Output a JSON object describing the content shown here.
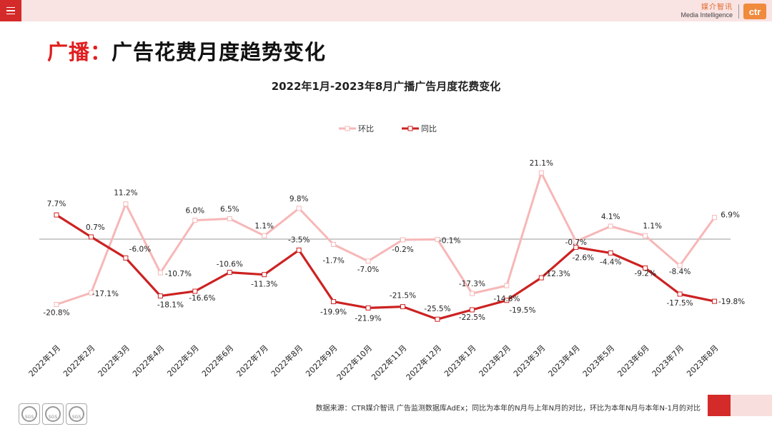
{
  "header": {
    "brand_cn": "媒介智讯",
    "brand_en": "Media Intelligence",
    "brand_logo": "ctr",
    "menu_icon": "menu-icon"
  },
  "page": {
    "title_accent": "广播：",
    "title_rest": "广告花费月度趋势变化"
  },
  "footer": {
    "note": "数据来源：CTR媒介智讯 广告监测数据库AdEx；同比为本年的N月与上年N月的对比，环比为本年N月与本年N-1月的对比",
    "seal_text": "SGS"
  },
  "colors": {
    "mom": "#f7b7b7",
    "yoy": "#cc2222",
    "accent": "#e01e1e"
  },
  "chart_data": {
    "type": "line",
    "title": "2022年1月-2023年8月广播广告月度花费变化",
    "legend_position": "top-center",
    "categories": [
      "2022年1月",
      "2022年2月",
      "2022年3月",
      "2022年4月",
      "2022年5月",
      "2022年6月",
      "2022年7月",
      "2022年8月",
      "2022年9月",
      "2022年10月",
      "2022年11月",
      "2022年12月",
      "2023年1月",
      "2023年2月",
      "2023年3月",
      "2023年4月",
      "2023年5月",
      "2023年6月",
      "2023年7月",
      "2023年8月"
    ],
    "series": [
      {
        "name": "环比",
        "values": [
          -20.8,
          -17.1,
          11.2,
          -10.7,
          6.0,
          6.5,
          1.1,
          9.8,
          -1.7,
          -7.0,
          -0.2,
          -0.1,
          -17.3,
          -14.8,
          21.1,
          -0.7,
          4.1,
          1.1,
          -8.4,
          6.9
        ],
        "labels": [
          "-20.8%",
          "-17.1%",
          "11.2%",
          "-10.7%",
          "6.0%",
          "6.5%",
          "1.1%",
          "9.8%",
          "-1.7%",
          "-7.0%",
          "-0.2%",
          "-0.1%",
          "-17.3%",
          "-14.8%",
          "21.1%",
          "-0.7%",
          "4.1%",
          "1.1%",
          "-8.4%",
          "6.9%"
        ]
      },
      {
        "name": "同比",
        "values": [
          7.7,
          0.7,
          -6.0,
          -18.1,
          -16.6,
          -10.6,
          -11.3,
          -3.5,
          -19.9,
          -21.9,
          -21.5,
          -25.5,
          -22.5,
          -19.5,
          -12.3,
          -2.6,
          -4.4,
          -9.2,
          -17.5,
          -19.8
        ],
        "labels": [
          "7.7%",
          "0.7%",
          "-6.0%",
          "-18.1%",
          "-16.6%",
          "-10.6%",
          "-11.3%",
          "-3.5%",
          "-19.9%",
          "-21.9%",
          "-21.5%",
          "-25.5%",
          "-22.5%",
          "-19.5%",
          "-12.3%",
          "-2.6%",
          "-4.4%",
          "-9.2%",
          "-17.5%",
          "-19.8%"
        ]
      }
    ],
    "zero_line": true,
    "grid": false
  }
}
